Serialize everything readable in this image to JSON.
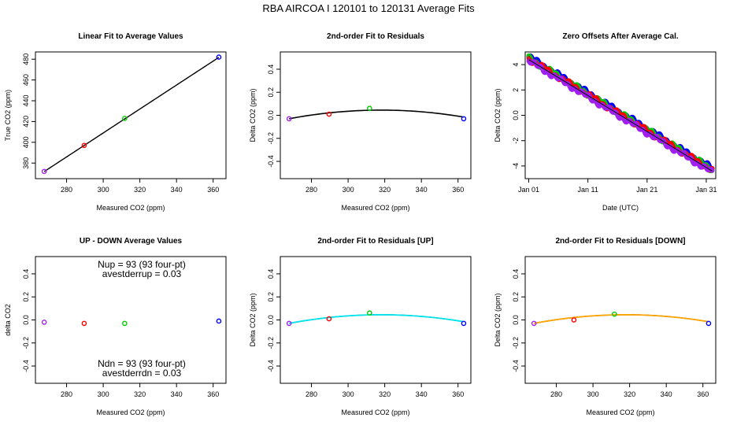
{
  "page_title": "RBA   AIRCOA I   120101 to 120131   Average Fits",
  "chart_data": [
    {
      "type": "scatter",
      "title": "Linear Fit to Average Values",
      "xlabel": "Measured CO2 (ppm)",
      "ylabel": "True CO2 (ppm)",
      "xlim": [
        263,
        367
      ],
      "ylim": [
        365,
        487
      ],
      "xticks": [
        280,
        300,
        320,
        340,
        360
      ],
      "yticks": [
        380,
        400,
        420,
        440,
        460,
        480
      ],
      "points": [
        {
          "x": 267.8,
          "y": 372.0,
          "color": "#a020f0"
        },
        {
          "x": 289.6,
          "y": 397.0,
          "color": "#ff0000"
        },
        {
          "x": 311.7,
          "y": 423.0,
          "color": "#00cc00"
        },
        {
          "x": 363.1,
          "y": 482.0,
          "color": "#0000ff"
        }
      ],
      "lines": [
        {
          "type": "linear",
          "a": 63.0,
          "b": 1.1533,
          "x_from": 267.8,
          "x_to": 363.1,
          "color": "#000000",
          "width": 1.4
        }
      ]
    },
    {
      "type": "scatter",
      "title": "2nd-order Fit to Residuals",
      "xlabel": "Measured CO2 (ppm)",
      "ylabel": "Delta CO2 (ppm)",
      "xlim": [
        263,
        367
      ],
      "ylim": [
        -0.55,
        0.55
      ],
      "xticks": [
        280,
        300,
        320,
        340,
        360
      ],
      "yticks": [
        -0.4,
        -0.2,
        0.0,
        0.2,
        0.4
      ],
      "points": [
        {
          "x": 267.8,
          "y": -0.03,
          "color": "#a020f0"
        },
        {
          "x": 289.6,
          "y": 0.01,
          "color": "#ff0000"
        },
        {
          "x": 311.7,
          "y": 0.06,
          "color": "#00cc00"
        },
        {
          "x": 363.1,
          "y": -0.03,
          "color": "#0000ff"
        }
      ],
      "lines": [
        {
          "type": "quadratic",
          "vertex_x": 318,
          "vertex_y": 0.045,
          "k": 2.97e-05,
          "x_from": 267.8,
          "x_to": 363.1,
          "color": "#000000",
          "width": 1.6
        }
      ]
    },
    {
      "type": "scatter",
      "title": "Zero Offsets After Average Cal.",
      "xlabel": "Date (UTC)",
      "ylabel": "Delta CO2 (ppm)",
      "xlim": [
        -0.6,
        31.6
      ],
      "ylim": [
        -5.0,
        5.0
      ],
      "xticks": [
        {
          "v": 0,
          "label": "Jan 01"
        },
        {
          "v": 10,
          "label": "Jan 11"
        },
        {
          "v": 20,
          "label": "Jan 21"
        },
        {
          "v": 30,
          "label": "Jan 31"
        }
      ],
      "yticks": [
        -4,
        -2,
        0,
        2,
        4
      ],
      "trend": {
        "y_start": 4.4,
        "y_end": -4.4,
        "x_start": 0,
        "x_end": 31
      },
      "series_colors": [
        "#0000ff",
        "#00cc00",
        "#ff0000",
        "#a020f0"
      ]
    },
    {
      "type": "scatter",
      "title": "UP - DOWN Average Values",
      "xlabel": "Measured CO2 (ppm)",
      "ylabel": "delta CO2",
      "xlim": [
        263,
        367
      ],
      "ylim": [
        -0.55,
        0.55
      ],
      "xticks": [
        280,
        300,
        320,
        340,
        360
      ],
      "yticks": [
        -0.4,
        -0.2,
        0.0,
        0.2,
        0.4
      ],
      "points": [
        {
          "x": 267.8,
          "y": -0.02,
          "color": "#a020f0"
        },
        {
          "x": 289.6,
          "y": -0.03,
          "color": "#ff0000"
        },
        {
          "x": 311.7,
          "y": -0.03,
          "color": "#00cc00"
        },
        {
          "x": 363.1,
          "y": -0.01,
          "color": "#0000ff"
        }
      ],
      "annotations": [
        {
          "text": "Nup = 93 (93 four-pt)",
          "y": 0.48
        },
        {
          "text": "avestderrup =  0.03",
          "y": 0.4
        },
        {
          "text": "Ndn = 93 (93 four-pt)",
          "y": -0.38
        },
        {
          "text": "avestderrdn =  0.03",
          "y": -0.46
        }
      ]
    },
    {
      "type": "scatter",
      "title": "2nd-order Fit to Residuals [UP]",
      "xlabel": "Measured CO2 (ppm)",
      "ylabel": "Delta CO2 (ppm)",
      "xlim": [
        263,
        367
      ],
      "ylim": [
        -0.55,
        0.55
      ],
      "xticks": [
        280,
        300,
        320,
        340,
        360
      ],
      "yticks": [
        -0.4,
        -0.2,
        0.0,
        0.2,
        0.4
      ],
      "points": [
        {
          "x": 267.8,
          "y": -0.03,
          "color": "#a020f0"
        },
        {
          "x": 289.6,
          "y": 0.01,
          "color": "#ff0000"
        },
        {
          "x": 311.7,
          "y": 0.06,
          "color": "#00cc00"
        },
        {
          "x": 363.1,
          "y": -0.03,
          "color": "#0000ff"
        }
      ],
      "lines": [
        {
          "type": "quadratic",
          "vertex_x": 318,
          "vertex_y": 0.045,
          "k": 2.97e-05,
          "x_from": 267.8,
          "x_to": 363.1,
          "color": "#000000",
          "width": 1.4
        },
        {
          "type": "quadratic",
          "vertex_x": 318,
          "vertex_y": 0.045,
          "k": 2.97e-05,
          "x_from": 267.8,
          "x_to": 363.1,
          "color": "#00e5ee",
          "width": 1.8
        }
      ]
    },
    {
      "type": "scatter",
      "title": "2nd-order Fit to Residuals [DOWN]",
      "xlabel": "Measured CO2 (ppm)",
      "ylabel": "Delta CO2 (ppm)",
      "xlim": [
        263,
        367
      ],
      "ylim": [
        -0.55,
        0.55
      ],
      "xticks": [
        280,
        300,
        320,
        340,
        360
      ],
      "yticks": [
        -0.4,
        -0.2,
        0.0,
        0.2,
        0.4
      ],
      "points": [
        {
          "x": 267.8,
          "y": -0.03,
          "color": "#a020f0"
        },
        {
          "x": 289.6,
          "y": 0.0,
          "color": "#ff0000"
        },
        {
          "x": 311.7,
          "y": 0.05,
          "color": "#00cc00"
        },
        {
          "x": 363.1,
          "y": -0.03,
          "color": "#0000ff"
        }
      ],
      "lines": [
        {
          "type": "quadratic",
          "vertex_x": 318,
          "vertex_y": 0.045,
          "k": 2.97e-05,
          "x_from": 267.8,
          "x_to": 363.1,
          "color": "#000000",
          "width": 1.4
        },
        {
          "type": "quadratic",
          "vertex_x": 318,
          "vertex_y": 0.045,
          "k": 2.97e-05,
          "x_from": 267.8,
          "x_to": 363.1,
          "color": "#ffa500",
          "width": 1.8
        }
      ]
    }
  ]
}
